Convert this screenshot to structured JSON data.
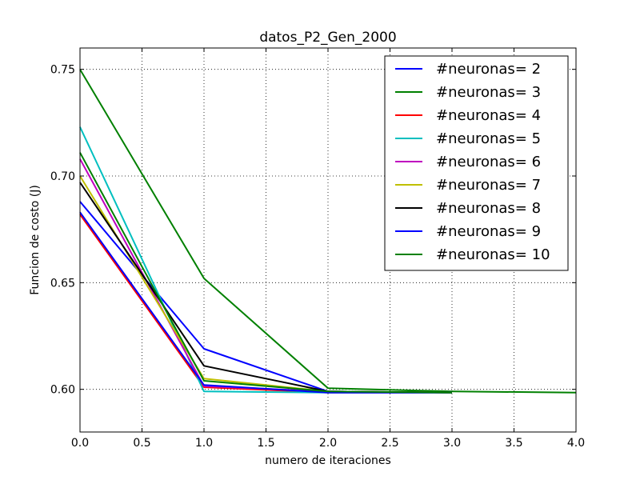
{
  "chart_data": {
    "type": "line",
    "title": "datos_P2_Gen_2000",
    "xlabel": "numero de iteraciones",
    "ylabel": "Funcion de costo (J)",
    "xlim": [
      0.0,
      4.0
    ],
    "ylim": [
      0.58,
      0.76
    ],
    "xticks": [
      "0.0",
      "0.5",
      "1.0",
      "1.5",
      "2.0",
      "2.5",
      "3.0",
      "3.5",
      "4.0"
    ],
    "yticks": [
      "0.60",
      "0.65",
      "0.70",
      "0.75"
    ],
    "grid": true,
    "legend_position": "top-right",
    "series": [
      {
        "name": "#neuronas= 2",
        "color": "#0000ff",
        "x": [
          0,
          1,
          2,
          3
        ],
        "y": [
          0.688,
          0.619,
          0.599,
          0.5985
        ]
      },
      {
        "name": "#neuronas= 3",
        "color": "#008000",
        "x": [
          0,
          1,
          2,
          3,
          4
        ],
        "y": [
          0.75,
          0.652,
          0.6005,
          0.599,
          0.5985
        ]
      },
      {
        "name": "#neuronas= 4",
        "color": "#ff0000",
        "x": [
          0,
          1,
          2,
          3
        ],
        "y": [
          0.682,
          0.601,
          0.5985,
          0.5985
        ]
      },
      {
        "name": "#neuronas= 5",
        "color": "#00bfbf",
        "x": [
          0,
          1,
          2,
          3
        ],
        "y": [
          0.723,
          0.599,
          0.5985,
          0.5985
        ]
      },
      {
        "name": "#neuronas= 6",
        "color": "#bf00bf",
        "x": [
          0,
          1,
          2,
          3
        ],
        "y": [
          0.708,
          0.6015,
          0.599,
          0.5985
        ]
      },
      {
        "name": "#neuronas= 7",
        "color": "#bfbf00",
        "x": [
          0,
          1,
          2,
          3
        ],
        "y": [
          0.7,
          0.605,
          0.599,
          0.5985
        ]
      },
      {
        "name": "#neuronas= 8",
        "color": "#000000",
        "x": [
          0,
          1,
          2,
          3
        ],
        "y": [
          0.697,
          0.611,
          0.599,
          0.5985
        ]
      },
      {
        "name": "#neuronas= 9",
        "color": "#0000ff",
        "x": [
          0,
          1,
          2,
          3
        ],
        "y": [
          0.683,
          0.602,
          0.5985,
          0.5985
        ]
      },
      {
        "name": "#neuronas= 10",
        "color": "#008000",
        "x": [
          0,
          1,
          2,
          3
        ],
        "y": [
          0.711,
          0.604,
          0.599,
          0.5985
        ]
      }
    ]
  }
}
